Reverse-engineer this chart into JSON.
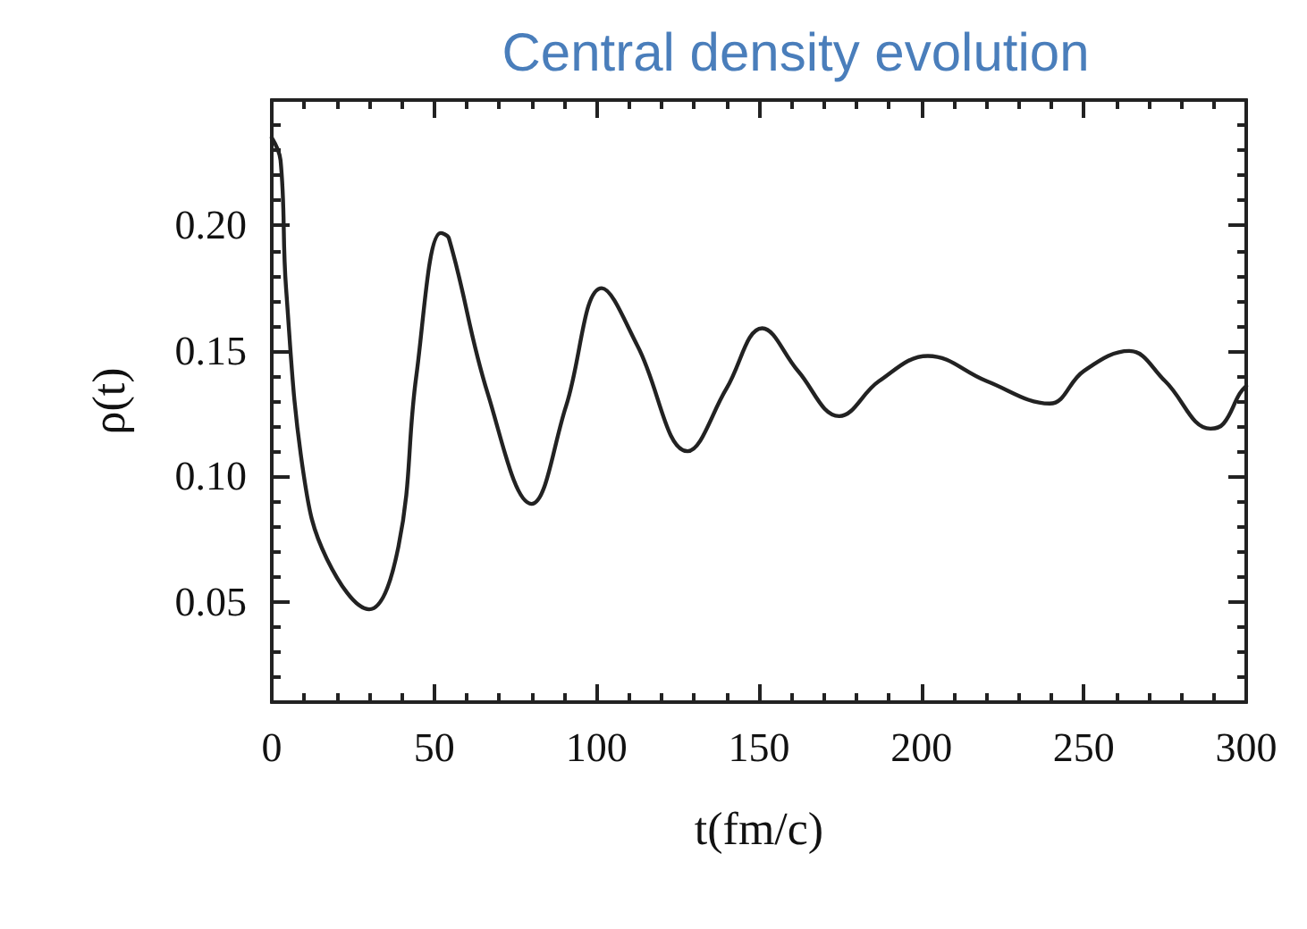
{
  "chart_data": {
    "type": "line",
    "title": "Central density evolution",
    "xlabel": "t(fm/c)",
    "ylabel": "ρ(t)",
    "x": [
      0,
      2.7,
      4.4,
      9.9,
      17,
      30,
      39,
      44.5,
      52,
      54.5,
      66.5,
      80,
      90.6,
      101.6,
      112.6,
      128,
      140,
      151,
      162,
      174.7,
      187,
      202,
      220,
      239.5,
      250,
      264,
      275,
      289,
      293,
      298,
      300
    ],
    "series": [
      {
        "color": "#222222",
        "values": [
          0.235,
          0.226,
          0.175,
          0.1,
          0.067,
          0.047,
          0.072,
          0.14,
          0.197,
          0.195,
          0.133,
          0.089,
          0.128,
          0.175,
          0.152,
          0.11,
          0.135,
          0.159,
          0.142,
          0.124,
          0.138,
          0.148,
          0.138,
          0.129,
          0.142,
          0.15,
          0.138,
          0.119,
          0.121,
          0.133,
          0.136
        ]
      }
    ],
    "xlim": [
      0,
      300
    ],
    "ylim": [
      0.01,
      0.25
    ],
    "xticks": [
      0,
      {
        "value": 10,
        "label": null
      },
      {
        "value": 20,
        "label": null
      },
      {
        "value": 30,
        "label": null
      },
      {
        "value": 40,
        "label": null
      },
      50,
      {
        "value": 60,
        "label": null
      },
      {
        "value": 70,
        "label": null
      },
      {
        "value": 80,
        "label": null
      },
      {
        "value": 90,
        "label": null
      },
      100,
      {
        "value": 110,
        "label": null
      },
      {
        "value": 120,
        "label": null
      },
      {
        "value": 130,
        "label": null
      },
      {
        "value": 140,
        "label": null
      },
      150,
      {
        "value": 160,
        "label": null
      },
      {
        "value": 170,
        "label": null
      },
      {
        "value": 180,
        "label": null
      },
      {
        "value": 190,
        "label": null
      },
      200,
      {
        "value": 210,
        "label": null
      },
      {
        "value": 220,
        "label": null
      },
      {
        "value": 230,
        "label": null
      },
      {
        "value": 240,
        "label": null
      },
      250,
      {
        "value": 260,
        "label": null
      },
      {
        "value": 270,
        "label": null
      },
      {
        "value": 280,
        "label": null
      },
      {
        "value": 290,
        "label": null
      },
      300
    ],
    "yticks": [
      {
        "value": 0.01,
        "label": null
      },
      {
        "value": 0.02,
        "label": null
      },
      {
        "value": 0.03,
        "label": null
      },
      {
        "value": 0.04,
        "label": null
      },
      {
        "value": 0.05,
        "label": "0.05"
      },
      {
        "value": 0.06,
        "label": null
      },
      {
        "value": 0.07,
        "label": null
      },
      {
        "value": 0.08,
        "label": null
      },
      {
        "value": 0.09,
        "label": null
      },
      {
        "value": 0.1,
        "label": "0.10"
      },
      {
        "value": 0.11,
        "label": null
      },
      {
        "value": 0.12,
        "label": null
      },
      {
        "value": 0.13,
        "label": null
      },
      {
        "value": 0.14,
        "label": null
      },
      {
        "value": 0.15,
        "label": "0.15"
      },
      {
        "value": 0.16,
        "label": null
      },
      {
        "value": 0.17,
        "label": null
      },
      {
        "value": 0.18,
        "label": null
      },
      {
        "value": 0.19,
        "label": null
      },
      {
        "value": 0.2,
        "label": "0.20"
      },
      {
        "value": 0.21,
        "label": null
      },
      {
        "value": 0.22,
        "label": null
      },
      {
        "value": 0.23,
        "label": null
      },
      {
        "value": 0.24,
        "label": null
      },
      {
        "value": 0.25,
        "label": null
      }
    ],
    "grid": false,
    "marker": "none",
    "line_style": "solid"
  }
}
